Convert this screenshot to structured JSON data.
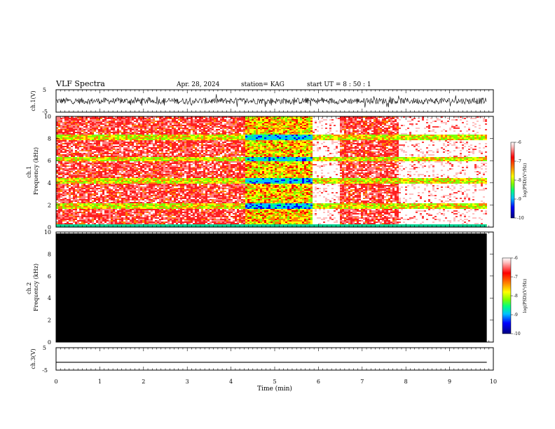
{
  "header": {
    "title": "VLF Spectra",
    "date": "Apr. 28, 2024",
    "station": "station= KAG",
    "start": "start  UT =   8  : 50 : 1"
  },
  "chart_data": [
    {
      "type": "line",
      "panel": "ch1-waveform",
      "ylabel": "ch.1(V)",
      "yticks": [
        "5",
        "-5"
      ],
      "ylim": [
        -5,
        5
      ],
      "xlim": [
        0,
        10
      ],
      "xlabel": "",
      "note_values": "noisy waveform roughly centered near 0 V across 0-9.85 min"
    },
    {
      "type": "heatmap",
      "panel": "ch1-spectrogram",
      "ylabel": "ch.1\nFrequency  (kHz)",
      "yticks": [
        "0",
        "2",
        "4",
        "6",
        "8",
        "10"
      ],
      "ylim": [
        0,
        10
      ],
      "xlim": [
        0,
        10
      ],
      "data_end_x": 9.85,
      "colorbar": {
        "ticks": [
          "-6",
          "-7",
          "-8",
          "-9",
          "-10"
        ],
        "label": "log(PSD)(V²/Hz)",
        "range": [
          -10,
          -6
        ],
        "colors": [
          "#000080",
          "#0000ff",
          "#00c0ff",
          "#00ff80",
          "#80ff00",
          "#ffff00",
          "#ff8000",
          "#ff0000",
          "#ff8080",
          "#ffffff"
        ]
      },
      "bands_khz": [
        0.1,
        2.0,
        4.2,
        6.2,
        8.2
      ],
      "quiet_segments_min": [
        [
          5.85,
          6.45
        ],
        [
          7.8,
          9.85
        ]
      ]
    },
    {
      "type": "heatmap",
      "panel": "ch2-spectrogram",
      "ylabel": "ch.2\nFrequency  (kHz)",
      "yticks": [
        "0",
        "2",
        "4",
        "6",
        "8",
        "10"
      ],
      "ylim": [
        0,
        10
      ],
      "xlim": [
        0,
        10
      ],
      "data_end_x": 9.85,
      "fill": "#000000",
      "colorbar": {
        "ticks": [
          "-6",
          "-7",
          "-8",
          "-9",
          "-10"
        ],
        "label": "log(PSD)(V²/Hz)",
        "range": [
          -10,
          -6
        ]
      }
    },
    {
      "type": "line",
      "panel": "ch3-waveform",
      "ylabel": "ch.3(V)",
      "yticks": [
        "5",
        "-5"
      ],
      "ylim": [
        -5,
        5
      ],
      "xlim": [
        0,
        10
      ],
      "x": [
        0,
        9.85
      ],
      "y": [
        -1.5,
        -1.5
      ],
      "xticks": [
        "0",
        "1",
        "2",
        "3",
        "4",
        "5",
        "6",
        "7",
        "8",
        "9",
        "10"
      ],
      "xlabel": "Time  (min)"
    }
  ]
}
